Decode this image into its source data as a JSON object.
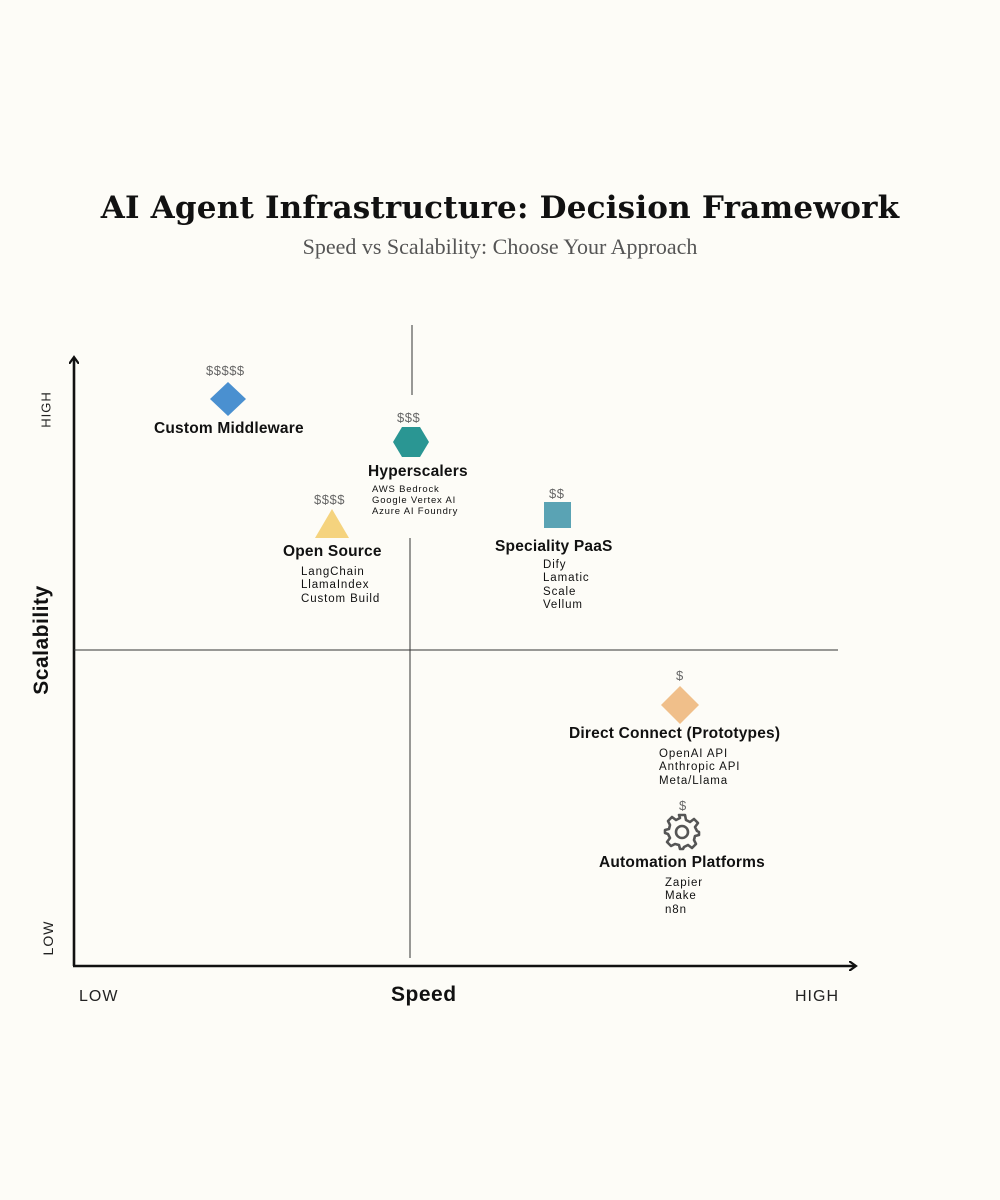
{
  "title": "AI Agent Infrastructure: Decision Framework",
  "subtitle": "Speed vs Scalability: Choose Your Approach",
  "axes": {
    "x_title": "Speed",
    "y_title": "Scalability",
    "x_low": "LOW",
    "x_high": "HIGH",
    "y_low": "LOW",
    "y_high": "HIGH"
  },
  "colors": {
    "custom_middleware": "#4a90d0",
    "hyperscalers": "#2a9693",
    "open_source": "#f5d37e",
    "speciality_paas": "#5aa3b4",
    "direct_connect": "#f0bf8a",
    "automation": "#555555"
  },
  "options": [
    {
      "id": "custom-middleware",
      "label": "Custom Middleware",
      "price": "$$$$$",
      "icon": "diamond-icon",
      "items": []
    },
    {
      "id": "hyperscalers",
      "label": "Hyperscalers",
      "price": "$$$",
      "icon": "hexagon-icon",
      "items": [
        "AWS Bedrock",
        "Google Vertex AI",
        "Azure AI Foundry"
      ]
    },
    {
      "id": "open-source",
      "label": "Open Source",
      "price": "$$$$",
      "icon": "triangle-icon",
      "items": [
        "LangChain",
        "LlamaIndex",
        "Custom Build"
      ]
    },
    {
      "id": "speciality-paas",
      "label": "Speciality PaaS",
      "price": "$$",
      "icon": "square-icon",
      "items": [
        "Dify",
        "Lamatic",
        "Scale",
        "Vellum"
      ]
    },
    {
      "id": "direct-connect",
      "label": "Direct Connect (Prototypes)",
      "price": "$",
      "icon": "diamond-icon",
      "items": [
        "OpenAI API",
        "Anthropic API",
        "Meta/Llama"
      ]
    },
    {
      "id": "automation-platforms",
      "label": "Automation Platforms",
      "price": "$",
      "icon": "gear-icon",
      "items": [
        "Zapier",
        "Make",
        "n8n"
      ]
    }
  ]
}
